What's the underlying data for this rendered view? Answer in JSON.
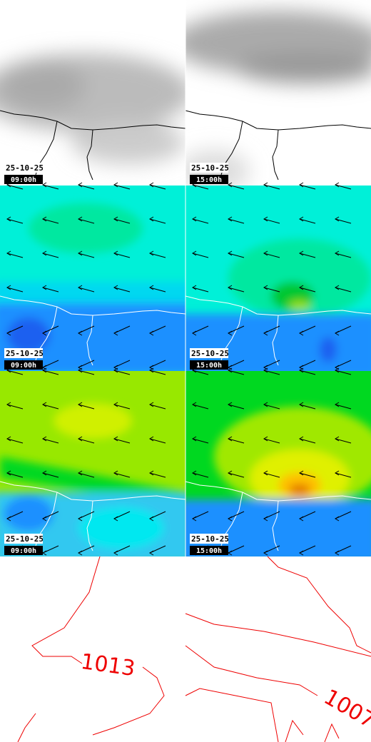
{
  "panels": [
    {
      "date": "25-10-25",
      "time": "09:00h"
    },
    {
      "date": "25-10-25",
      "time": "15:00h"
    },
    {
      "date": "25-10-25",
      "time": "09:00h"
    },
    {
      "date": "25-10-25",
      "time": "15:00h"
    },
    {
      "date": "25-10-25",
      "time": "09:00h"
    },
    {
      "date": "25-10-25",
      "time": "15:00h"
    }
  ],
  "isobar_labels": [
    "1013",
    "1007"
  ]
}
